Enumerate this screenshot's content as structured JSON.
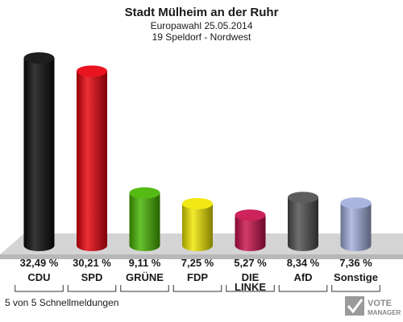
{
  "header": {
    "title": "Stadt Mülheim an der Ruhr",
    "subtitle": "Europawahl 25.05.2014",
    "district": "19 Speldorf - Nordwest"
  },
  "footer": {
    "note": "5 von 5 Schnellmeldungen"
  },
  "logo": {
    "line1": "VOTE",
    "line2": "MANAGER"
  },
  "chart_data": {
    "type": "bar",
    "title": "Stadt Mülheim an der Ruhr",
    "subtitle": "Europawahl 25.05.2014",
    "categories": [
      "CDU",
      "SPD",
      "GRÜNE",
      "FDP",
      "DIE LINKE",
      "AfD",
      "Sonstige"
    ],
    "values": [
      32.49,
      30.21,
      9.11,
      7.25,
      5.27,
      8.34,
      7.36
    ],
    "value_labels": [
      "32,49 %",
      "30,21 %",
      "9,11 %",
      "7,25 %",
      "5,27 %",
      "8,34 %",
      "7,36 %"
    ],
    "colors": [
      "#0a0a0a",
      "#e8000b",
      "#46b400",
      "#f0e600",
      "#c8104c",
      "#4f4f4f",
      "#a2aedc"
    ],
    "ylim": [
      0,
      32.49
    ],
    "grid": false,
    "legend": "none"
  }
}
